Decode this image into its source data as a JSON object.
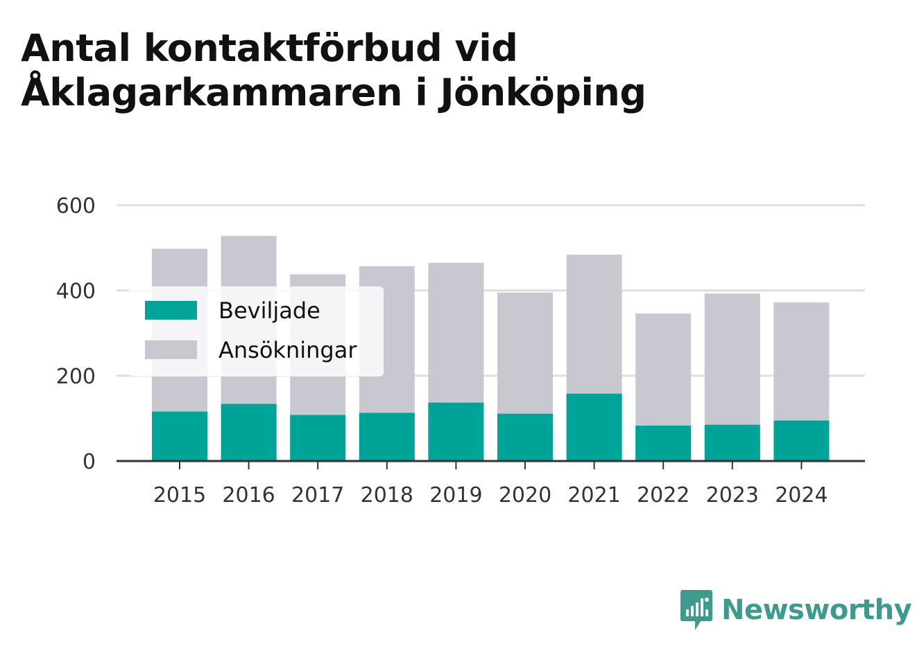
{
  "chart_data": {
    "type": "bar",
    "stacking": "overlap",
    "title": "Antal kontaktförbud vid Åklagarkammaren i Jönköping",
    "categories": [
      "2015",
      "2016",
      "2017",
      "2018",
      "2019",
      "2020",
      "2021",
      "2022",
      "2023",
      "2024"
    ],
    "series": [
      {
        "name": "Ansökningar",
        "color": "#c8c8d0",
        "values": [
          498,
          528,
          438,
          457,
          465,
          395,
          484,
          346,
          393,
          372
        ]
      },
      {
        "name": "Beviljade",
        "color": "#00a398",
        "values": [
          116,
          134,
          108,
          113,
          137,
          111,
          158,
          83,
          85,
          95
        ]
      }
    ],
    "yticks": [
      0,
      200,
      400,
      600
    ],
    "ylim": [
      0,
      600
    ],
    "grid": true,
    "legend": {
      "position": "top-left",
      "entries": [
        "Beviljade",
        "Ansökningar"
      ]
    }
  },
  "brand": {
    "name": "Newsworthy",
    "color": "#3e9a8d",
    "icon": "newsworthy-logo-icon"
  }
}
